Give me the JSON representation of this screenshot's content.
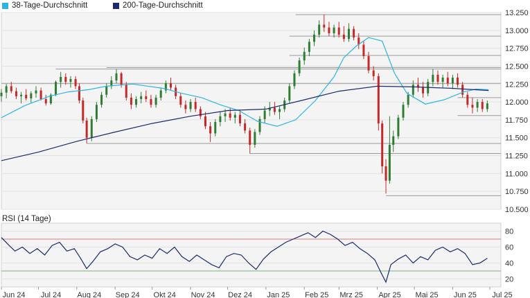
{
  "legend": {
    "items": [
      {
        "label": "38-Tage-Durchschnitt",
        "color": "#2bb5e6"
      },
      {
        "label": "200-Tage-Durchschnitt",
        "color": "#1a2a6c"
      }
    ]
  },
  "rsi": {
    "title": "RSI (14 Tage)"
  },
  "colors": {
    "up": "#2e7d32",
    "down": "#c62828",
    "ma38": "#2bb5e6",
    "ma200": "#1a2a6c",
    "rsi": "#1a2a6c",
    "rsi_upper": "#d08080",
    "rsi_lower": "#80b080",
    "bg": "#f4f4f4"
  },
  "chart_data": [
    {
      "type": "candlestick",
      "title": "",
      "y_ticks": [
        "13.250",
        "13.000",
        "12.750",
        "12.500",
        "12.250",
        "12.000",
        "11.750",
        "11.500",
        "11.250",
        "11.000",
        "10.750",
        "10.500"
      ],
      "ylim": [
        10.5,
        13.25
      ],
      "x_ticks": [
        "Jun 24",
        "Jul 24",
        "Aug 24",
        "Sep 24",
        "Okt 24",
        "Nov 24",
        "Dez 24",
        "Jan 25",
        "Feb 25",
        "Mrz 25",
        "Apr 25",
        "Mai 25",
        "Jun 25",
        "Jul 25"
      ],
      "x_range": [
        "2024-06-01",
        "2025-07-10"
      ],
      "grid": true,
      "series": [
        {
          "name": "38-Tage-Durchschnitt",
          "x": [
            "2024-06-01",
            "2024-06-20",
            "2024-07-10",
            "2024-07-25",
            "2024-08-10",
            "2024-08-25",
            "2024-09-15",
            "2024-10-10",
            "2024-10-25",
            "2024-11-10",
            "2024-11-25",
            "2024-12-10",
            "2024-12-25",
            "2025-01-10",
            "2025-01-25",
            "2025-02-10",
            "2025-02-25",
            "2025-03-05",
            "2025-03-15",
            "2025-03-25",
            "2025-04-05",
            "2025-04-15",
            "2025-04-25",
            "2025-05-10",
            "2025-05-25",
            "2025-06-10",
            "2025-06-20",
            "2025-06-30"
          ],
          "values": [
            11.78,
            11.95,
            12.08,
            12.14,
            12.17,
            12.22,
            12.25,
            12.19,
            12.12,
            12.06,
            11.96,
            11.88,
            11.73,
            11.66,
            11.75,
            12.02,
            12.35,
            12.62,
            12.78,
            12.9,
            12.85,
            12.4,
            12.12,
            11.97,
            12.03,
            12.14,
            12.18,
            12.17
          ]
        },
        {
          "name": "200-Tage-Durchschnitt",
          "x": [
            "2024-06-01",
            "2024-07-01",
            "2024-08-01",
            "2024-09-01",
            "2024-10-01",
            "2024-11-01",
            "2024-12-01",
            "2025-01-01",
            "2025-02-01",
            "2025-03-01",
            "2025-04-01",
            "2025-05-01",
            "2025-06-01",
            "2025-06-30"
          ],
          "values": [
            11.18,
            11.3,
            11.45,
            11.58,
            11.7,
            11.8,
            11.88,
            11.9,
            12.03,
            12.15,
            12.22,
            12.21,
            12.19,
            12.16
          ]
        }
      ],
      "candles": [
        [
          "2024-06-01",
          12.08,
          12.18,
          12.0,
          12.13
        ],
        [
          "2024-06-05",
          12.13,
          12.25,
          12.05,
          12.22
        ],
        [
          "2024-06-09",
          12.22,
          12.28,
          12.12,
          12.15
        ],
        [
          "2024-06-13",
          12.15,
          12.2,
          12.04,
          12.08
        ],
        [
          "2024-06-17",
          12.08,
          12.14,
          11.98,
          12.1
        ],
        [
          "2024-06-21",
          12.1,
          12.18,
          12.02,
          12.05
        ],
        [
          "2024-06-25",
          12.05,
          12.15,
          11.99,
          12.12
        ],
        [
          "2024-06-29",
          12.12,
          12.22,
          12.06,
          12.16
        ],
        [
          "2024-07-03",
          12.16,
          12.2,
          12.02,
          12.04
        ],
        [
          "2024-07-07",
          12.04,
          12.1,
          11.95,
          11.98
        ],
        [
          "2024-07-11",
          11.98,
          12.12,
          11.96,
          12.1
        ],
        [
          "2024-07-15",
          12.1,
          12.3,
          12.08,
          12.28
        ],
        [
          "2024-07-19",
          12.28,
          12.42,
          12.2,
          12.35
        ],
        [
          "2024-07-23",
          12.35,
          12.4,
          12.24,
          12.28
        ],
        [
          "2024-07-27",
          12.28,
          12.36,
          12.2,
          12.32
        ],
        [
          "2024-07-31",
          12.32,
          12.36,
          12.18,
          12.22
        ],
        [
          "2024-08-03",
          12.22,
          12.26,
          11.98,
          12.02
        ],
        [
          "2024-08-06",
          12.02,
          12.06,
          11.7,
          11.74
        ],
        [
          "2024-08-09",
          11.74,
          11.78,
          11.42,
          11.5
        ],
        [
          "2024-08-13",
          11.5,
          11.8,
          11.45,
          11.76
        ],
        [
          "2024-08-17",
          11.76,
          12.0,
          11.72,
          11.96
        ],
        [
          "2024-08-21",
          11.96,
          12.14,
          11.92,
          12.1
        ],
        [
          "2024-08-25",
          12.1,
          12.26,
          12.06,
          12.22
        ],
        [
          "2024-08-29",
          12.22,
          12.36,
          12.18,
          12.3
        ],
        [
          "2024-09-02",
          12.3,
          12.46,
          12.26,
          12.4
        ],
        [
          "2024-09-06",
          12.4,
          12.42,
          12.2,
          12.24
        ],
        [
          "2024-09-10",
          12.24,
          12.28,
          12.02,
          12.06
        ],
        [
          "2024-09-14",
          12.06,
          12.12,
          11.9,
          11.96
        ],
        [
          "2024-09-18",
          11.96,
          12.08,
          11.92,
          12.04
        ],
        [
          "2024-09-22",
          12.04,
          12.14,
          11.98,
          12.08
        ],
        [
          "2024-09-26",
          12.08,
          12.16,
          12.0,
          12.04
        ],
        [
          "2024-09-30",
          12.04,
          12.1,
          11.92,
          11.96
        ],
        [
          "2024-10-04",
          11.96,
          12.1,
          11.92,
          12.06
        ],
        [
          "2024-10-08",
          12.06,
          12.2,
          12.02,
          12.16
        ],
        [
          "2024-10-12",
          12.16,
          12.3,
          12.12,
          12.26
        ],
        [
          "2024-10-16",
          12.26,
          12.34,
          12.16,
          12.2
        ],
        [
          "2024-10-20",
          12.2,
          12.24,
          12.04,
          12.08
        ],
        [
          "2024-10-24",
          12.08,
          12.12,
          11.92,
          11.96
        ],
        [
          "2024-10-28",
          11.96,
          12.02,
          11.84,
          11.9
        ],
        [
          "2024-11-01",
          11.9,
          12.04,
          11.86,
          12.0
        ],
        [
          "2024-11-05",
          12.0,
          12.06,
          11.86,
          11.9
        ],
        [
          "2024-11-09",
          11.9,
          11.94,
          11.76,
          11.8
        ],
        [
          "2024-11-13",
          11.8,
          11.86,
          11.62,
          11.66
        ],
        [
          "2024-11-17",
          11.66,
          11.72,
          11.44,
          11.56
        ],
        [
          "2024-11-21",
          11.56,
          11.76,
          11.52,
          11.72
        ],
        [
          "2024-11-25",
          11.72,
          11.86,
          11.66,
          11.8
        ],
        [
          "2024-11-29",
          11.8,
          11.9,
          11.72,
          11.84
        ],
        [
          "2024-12-03",
          11.84,
          11.92,
          11.74,
          11.78
        ],
        [
          "2024-12-07",
          11.78,
          11.86,
          11.7,
          11.82
        ],
        [
          "2024-12-11",
          11.82,
          11.88,
          11.66,
          11.7
        ],
        [
          "2024-12-15",
          11.7,
          11.76,
          11.56,
          11.6
        ],
        [
          "2024-12-19",
          11.6,
          11.64,
          11.28,
          11.4
        ],
        [
          "2024-12-23",
          11.4,
          11.62,
          11.36,
          11.58
        ],
        [
          "2024-12-27",
          11.58,
          11.8,
          11.54,
          11.76
        ],
        [
          "2024-12-31",
          11.76,
          11.94,
          11.7,
          11.88
        ],
        [
          "2025-01-04",
          11.88,
          12.0,
          11.8,
          11.92
        ],
        [
          "2025-01-08",
          11.92,
          12.0,
          11.82,
          11.86
        ],
        [
          "2025-01-12",
          11.86,
          11.94,
          11.76,
          11.9
        ],
        [
          "2025-01-16",
          11.9,
          12.06,
          11.86,
          12.02
        ],
        [
          "2025-01-20",
          12.02,
          12.26,
          11.98,
          12.22
        ],
        [
          "2025-01-24",
          12.22,
          12.44,
          12.18,
          12.4
        ],
        [
          "2025-01-28",
          12.4,
          12.62,
          12.36,
          12.58
        ],
        [
          "2025-02-01",
          12.58,
          12.76,
          12.52,
          12.7
        ],
        [
          "2025-02-05",
          12.7,
          12.88,
          12.64,
          12.84
        ],
        [
          "2025-02-09",
          12.84,
          13.0,
          12.78,
          12.94
        ],
        [
          "2025-02-13",
          12.94,
          13.14,
          12.9,
          13.08
        ],
        [
          "2025-02-17",
          13.08,
          13.22,
          12.98,
          13.04
        ],
        [
          "2025-02-21",
          13.04,
          13.12,
          12.92,
          12.96
        ],
        [
          "2025-02-25",
          12.96,
          13.08,
          12.9,
          13.04
        ],
        [
          "2025-03-01",
          13.04,
          13.12,
          12.9,
          12.94
        ],
        [
          "2025-03-05",
          12.94,
          13.06,
          12.84,
          12.88
        ],
        [
          "2025-03-09",
          12.88,
          13.1,
          12.84,
          13.02
        ],
        [
          "2025-03-13",
          13.02,
          13.06,
          12.86,
          12.9
        ],
        [
          "2025-03-17",
          12.9,
          12.96,
          12.74,
          12.8
        ],
        [
          "2025-03-21",
          12.8,
          12.86,
          12.6,
          12.64
        ],
        [
          "2025-03-25",
          12.64,
          12.7,
          12.4,
          12.44
        ],
        [
          "2025-03-29",
          12.44,
          12.5,
          12.3,
          12.36
        ],
        [
          "2025-04-02",
          12.36,
          12.4,
          11.6,
          11.7
        ],
        [
          "2025-04-05",
          11.7,
          11.74,
          11.0,
          11.1
        ],
        [
          "2025-04-08",
          11.1,
          11.2,
          10.72,
          10.9
        ],
        [
          "2025-04-11",
          10.9,
          11.8,
          10.86,
          11.4
        ],
        [
          "2025-04-14",
          11.4,
          11.6,
          11.3,
          11.52
        ],
        [
          "2025-04-18",
          11.52,
          11.82,
          11.48,
          11.78
        ],
        [
          "2025-04-22",
          11.78,
          12.0,
          11.74,
          11.96
        ],
        [
          "2025-04-26",
          11.96,
          12.14,
          11.92,
          12.1
        ],
        [
          "2025-04-30",
          12.1,
          12.3,
          12.06,
          12.24
        ],
        [
          "2025-05-04",
          12.24,
          12.34,
          12.14,
          12.2
        ],
        [
          "2025-05-08",
          12.2,
          12.28,
          12.06,
          12.12
        ],
        [
          "2025-05-12",
          12.12,
          12.32,
          12.08,
          12.28
        ],
        [
          "2025-05-16",
          12.28,
          12.46,
          12.22,
          12.38
        ],
        [
          "2025-05-20",
          12.38,
          12.44,
          12.24,
          12.28
        ],
        [
          "2025-05-24",
          12.28,
          12.38,
          12.2,
          12.34
        ],
        [
          "2025-05-28",
          12.34,
          12.42,
          12.22,
          12.26
        ],
        [
          "2025-06-01",
          12.26,
          12.38,
          12.18,
          12.34
        ],
        [
          "2025-06-05",
          12.34,
          12.4,
          12.2,
          12.24
        ],
        [
          "2025-06-09",
          12.24,
          12.28,
          12.06,
          12.1
        ],
        [
          "2025-06-13",
          12.1,
          12.14,
          11.92,
          11.96
        ],
        [
          "2025-06-17",
          11.96,
          12.06,
          11.84,
          11.92
        ],
        [
          "2025-06-21",
          11.92,
          12.04,
          11.86,
          12.0
        ],
        [
          "2025-06-25",
          12.0,
          12.04,
          11.86,
          11.9
        ],
        [
          "2025-06-29",
          11.9,
          12.02,
          11.86,
          11.98
        ]
      ],
      "levels": [
        {
          "from": "2025-01-25",
          "to": "2025-07-10",
          "value": 13.22
        },
        {
          "from": "2024-07-15",
          "to": "2025-07-10",
          "value": 12.46
        },
        {
          "from": "2024-08-25",
          "to": "2025-07-10",
          "value": 12.48
        },
        {
          "from": "2024-06-01",
          "to": "2025-07-10",
          "value": 12.26
        },
        {
          "from": "2025-06-05",
          "to": "2025-07-10",
          "value": 12.06
        },
        {
          "from": "2025-06-05",
          "to": "2025-07-10",
          "value": 11.81
        },
        {
          "from": "2024-08-09",
          "to": "2025-07-10",
          "value": 11.42
        },
        {
          "from": "2024-12-19",
          "to": "2025-07-10",
          "value": 11.28
        },
        {
          "from": "2025-04-08",
          "to": "2025-07-10",
          "value": 10.69
        },
        {
          "from": "2025-01-20",
          "to": "2025-07-10",
          "value": 12.92
        },
        {
          "from": "2025-01-20",
          "to": "2025-07-10",
          "value": 12.65
        }
      ]
    },
    {
      "type": "line",
      "title": "RSI (14 Tage)",
      "y_ticks": [
        "80",
        "60",
        "40",
        "20"
      ],
      "ylim": [
        10,
        90
      ],
      "reference_lines": [
        70,
        30
      ],
      "series": [
        {
          "name": "RSI (14 Tage)",
          "x": [
            "2024-06-01",
            "2024-06-06",
            "2024-06-12",
            "2024-06-18",
            "2024-06-24",
            "2024-06-30",
            "2024-07-06",
            "2024-07-12",
            "2024-07-18",
            "2024-07-24",
            "2024-07-30",
            "2024-08-04",
            "2024-08-09",
            "2024-08-14",
            "2024-08-20",
            "2024-08-26",
            "2024-09-01",
            "2024-09-07",
            "2024-09-13",
            "2024-09-19",
            "2024-09-25",
            "2024-10-01",
            "2024-10-07",
            "2024-10-13",
            "2024-10-19",
            "2024-10-25",
            "2024-10-31",
            "2024-11-06",
            "2024-11-12",
            "2024-11-18",
            "2024-11-24",
            "2024-11-30",
            "2024-12-06",
            "2024-12-12",
            "2024-12-18",
            "2024-12-24",
            "2024-12-30",
            "2025-01-05",
            "2025-01-11",
            "2025-01-17",
            "2025-01-23",
            "2025-01-29",
            "2025-02-04",
            "2025-02-10",
            "2025-02-16",
            "2025-02-22",
            "2025-02-28",
            "2025-03-06",
            "2025-03-12",
            "2025-03-18",
            "2025-03-24",
            "2025-03-30",
            "2025-04-04",
            "2025-04-08",
            "2025-04-12",
            "2025-04-18",
            "2025-04-24",
            "2025-04-30",
            "2025-05-06",
            "2025-05-12",
            "2025-05-18",
            "2025-05-24",
            "2025-05-30",
            "2025-06-05",
            "2025-06-11",
            "2025-06-17",
            "2025-06-23",
            "2025-06-29"
          ],
          "values": [
            72,
            64,
            55,
            60,
            52,
            58,
            50,
            62,
            66,
            55,
            58,
            46,
            33,
            42,
            54,
            58,
            64,
            60,
            48,
            44,
            50,
            46,
            58,
            52,
            60,
            48,
            42,
            50,
            44,
            38,
            34,
            48,
            52,
            50,
            40,
            32,
            45,
            54,
            60,
            66,
            70,
            74,
            78,
            72,
            80,
            76,
            70,
            62,
            66,
            58,
            52,
            44,
            28,
            16,
            38,
            45,
            50,
            40,
            48,
            44,
            56,
            60,
            54,
            58,
            52,
            38,
            40,
            46
          ]
        }
      ]
    }
  ]
}
